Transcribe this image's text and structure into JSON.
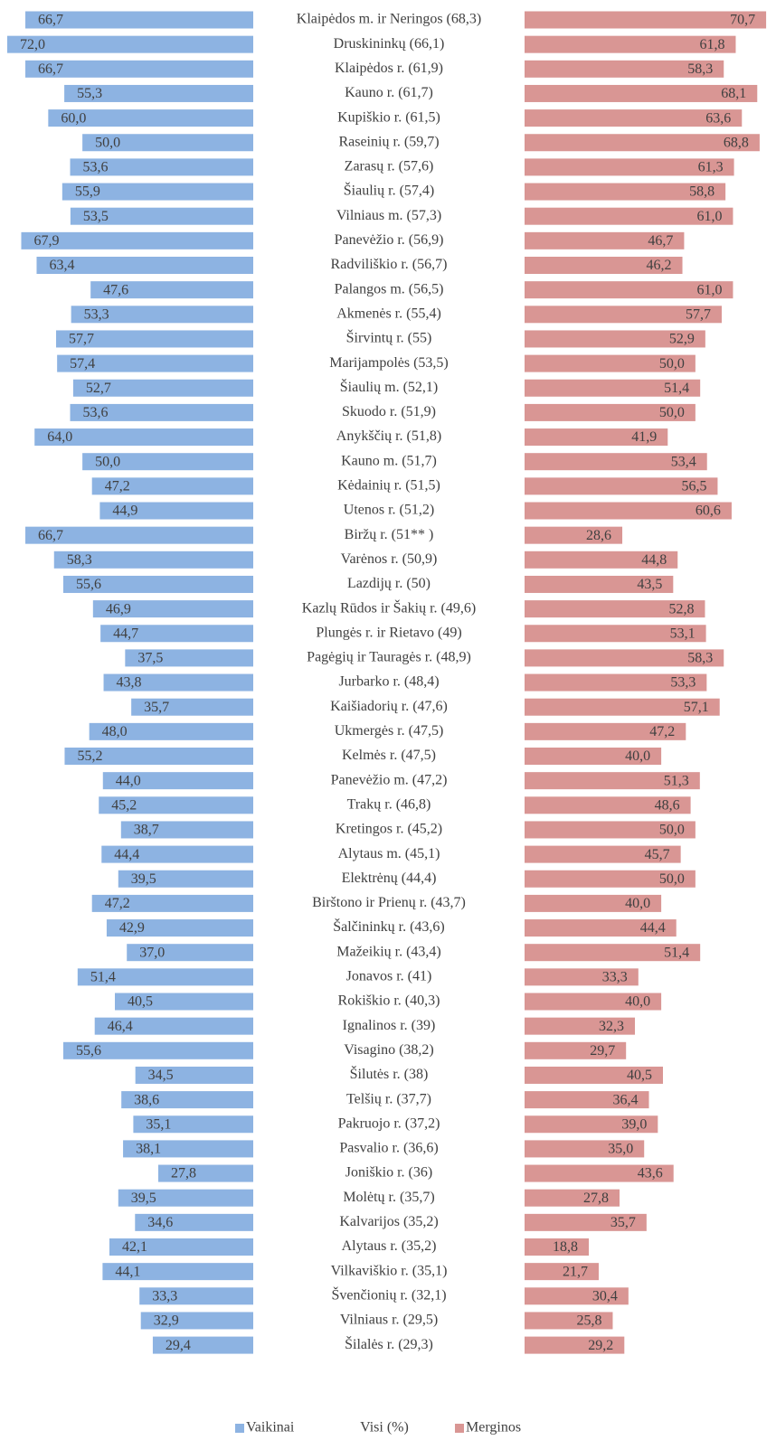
{
  "chart_data": {
    "type": "butterfly",
    "categories": [
      "Klaipėdos m. ir Neringos (68,3)",
      "Druskininkų (66,1)",
      "Klaipėdos r. (61,9)",
      "Kauno r. (61,7)",
      "Kupiškio r. (61,5)",
      "Raseinių r. (59,7)",
      "Zarasų r. (57,6)",
      "Šiaulių r. (57,4)",
      "Vilniaus m. (57,3)",
      "Panevėžio r. (56,9)",
      "Radviliškio r. (56,7)",
      "Palangos m. (56,5)",
      "Akmenės r. (55,4)",
      "Širvintų r. (55)",
      "Marijampolės (53,5)",
      "Šiaulių m. (52,1)",
      "Skuodo r. (51,9)",
      "Anykščių r. (51,8)",
      "Kauno m. (51,7)",
      "Kėdainių r. (51,5)",
      "Utenos r. (51,2)",
      "Biržų r. (51** )",
      "Varėnos r. (50,9)",
      "Lazdijų r. (50)",
      "Kazlų Rūdos ir Šakių r. (49,6)",
      "Plungės r. ir Rietavo (49)",
      "Pagėgių ir Tauragės r. (48,9)",
      "Jurbarko r. (48,4)",
      "Kaišiadorių r. (47,6)",
      "Ukmergės r. (47,5)",
      "Kelmės r. (47,5)",
      "Panevėžio m. (47,2)",
      "Trakų r. (46,8)",
      "Kretingos r. (45,2)",
      "Alytaus m. (45,1)",
      "Elektrėnų (44,4)",
      "Birštono ir Prienų r. (43,7)",
      "Šalčininkų r. (43,6)",
      "Mažeikių r. (43,4)",
      "Jonavos r. (41)",
      "Rokiškio r. (40,3)",
      "Ignalinos r. (39)",
      "Visagino (38,2)",
      "Šilutės r. (38)",
      "Telšių r. (37,7)",
      "Pakruojo r. (37,2)",
      "Pasvalio r. (36,6)",
      "Joniškio r. (36)",
      "Molėtų r. (35,7)",
      "Kalvarijos (35,2)",
      "Alytaus r. (35,2)",
      "Vilkaviškio r. (35,1)",
      "Švenčionių r. (32,1)",
      "Vilniaus r. (29,5)",
      "Šilalės r. (29,3)"
    ],
    "category_label": "Visi (%)",
    "series": [
      {
        "name": "Vaikinai",
        "color": "#8db3e2",
        "values": [
          66.7,
          72.0,
          66.7,
          55.3,
          60.0,
          50.0,
          53.6,
          55.9,
          53.5,
          67.9,
          63.4,
          47.6,
          53.3,
          57.7,
          57.4,
          52.7,
          53.6,
          64.0,
          50.0,
          47.2,
          44.9,
          66.7,
          58.3,
          55.6,
          46.9,
          44.7,
          37.5,
          43.8,
          35.7,
          48.0,
          55.2,
          44.0,
          45.2,
          38.7,
          44.4,
          39.5,
          47.2,
          42.9,
          37.0,
          51.4,
          40.5,
          46.4,
          55.6,
          34.5,
          38.6,
          35.1,
          38.1,
          27.8,
          39.5,
          34.6,
          42.1,
          44.1,
          33.3,
          32.9,
          29.4
        ],
        "value_labels": [
          "66,7",
          "72,0",
          "66,7",
          "55,3",
          "60,0",
          "50,0",
          "53,6",
          "55,9",
          "53,5",
          "67,9",
          "63,4",
          "47,6",
          "53,3",
          "57,7",
          "57,4",
          "52,7",
          "53,6",
          "64,0",
          "50,0",
          "47,2",
          "44,9",
          "66,7",
          "58,3",
          "55,6",
          "46,9",
          "44,7",
          "37,5",
          "43,8",
          "35,7",
          "48,0",
          "55,2",
          "44,0",
          "45,2",
          "38,7",
          "44,4",
          "39,5",
          "47,2",
          "42,9",
          "37,0",
          "51,4",
          "40,5",
          "46,4",
          "55,6",
          "34,5",
          "38,6",
          "35,1",
          "38,1",
          "27,8",
          "39,5",
          "34,6",
          "42,1",
          "44,1",
          "33,3",
          "32,9",
          "29,4"
        ]
      },
      {
        "name": "Merginos",
        "color": "#d99694",
        "values": [
          70.7,
          61.8,
          58.3,
          68.1,
          63.6,
          68.8,
          61.3,
          58.8,
          61.0,
          46.7,
          46.2,
          61.0,
          57.7,
          52.9,
          50.0,
          51.4,
          50.0,
          41.9,
          53.4,
          56.5,
          60.6,
          28.6,
          44.8,
          43.5,
          52.8,
          53.1,
          58.3,
          53.3,
          57.1,
          47.2,
          40.0,
          51.3,
          48.6,
          50.0,
          45.7,
          50.0,
          40.0,
          44.4,
          51.4,
          33.3,
          40.0,
          32.3,
          29.7,
          40.5,
          36.4,
          39.0,
          35.0,
          43.6,
          27.8,
          35.7,
          18.8,
          21.7,
          30.4,
          25.8,
          29.2
        ],
        "value_labels": [
          "70,7",
          "61,8",
          "58,3",
          "68,1",
          "63,6",
          "68,8",
          "61,3",
          "58,8",
          "61,0",
          "46,7",
          "46,2",
          "61,0",
          "57,7",
          "52,9",
          "50,0",
          "51,4",
          "50,0",
          "41,9",
          "53,4",
          "56,5",
          "60,6",
          "28,6",
          "44,8",
          "43,5",
          "52,8",
          "53,1",
          "58,3",
          "53,3",
          "57,1",
          "47,2",
          "40,0",
          "51,3",
          "48,6",
          "50,0",
          "45,7",
          "50,0",
          "40,0",
          "44,4",
          "51,4",
          "33,3",
          "40,0",
          "32,3",
          "29,7",
          "40,5",
          "36,4",
          "39,0",
          "35,0",
          "43,6",
          "27,8",
          "35,7",
          "18,8",
          "21,7",
          "30,4",
          "25,8",
          "29,2"
        ]
      }
    ]
  }
}
